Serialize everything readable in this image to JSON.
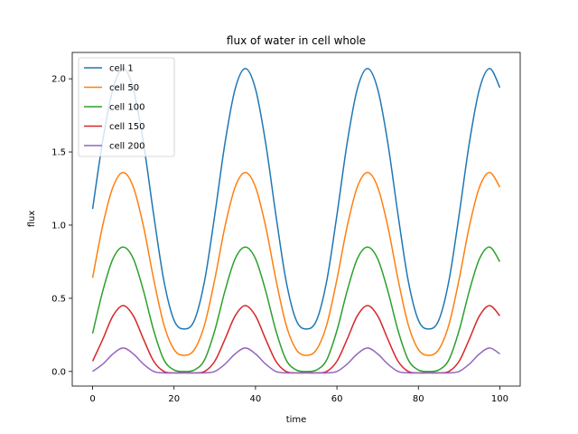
{
  "chart_data": {
    "type": "line",
    "title": "flux of water in cell whole",
    "xlabel": "time",
    "ylabel": "flux",
    "xlim": [
      -5,
      105
    ],
    "ylim": [
      -0.1,
      2.18
    ],
    "xticks": [
      0,
      20,
      40,
      60,
      80,
      100
    ],
    "yticks": [
      0.0,
      0.5,
      1.0,
      1.5,
      2.0
    ],
    "xtick_labels": [
      "0",
      "20",
      "40",
      "60",
      "80",
      "100"
    ],
    "ytick_labels": [
      "0.0",
      "0.5",
      "1.0",
      "1.5",
      "2.0"
    ],
    "grid": false,
    "legend": "top-left",
    "x": [
      0,
      2.5,
      5,
      7.5,
      10,
      12.5,
      15,
      17.5,
      20,
      22.5,
      25,
      27.5,
      30,
      32.5,
      35,
      37.5,
      40,
      42.5,
      45,
      47.5,
      50,
      52.5,
      55,
      57.5,
      60,
      62.5,
      65,
      67.5,
      70,
      72.5,
      75,
      77.5,
      80,
      82.5,
      85,
      87.5,
      90,
      92.5,
      95,
      97.5,
      100
    ],
    "series": [
      {
        "name": "cell 1",
        "color": "#1f77b4",
        "values": [
          1.11,
          1.58,
          1.93,
          2.07,
          1.93,
          1.56,
          1.07,
          0.62,
          0.35,
          0.29,
          0.35,
          0.62,
          1.07,
          1.56,
          1.93,
          2.07,
          1.93,
          1.56,
          1.07,
          0.62,
          0.35,
          0.29,
          0.35,
          0.62,
          1.07,
          1.56,
          1.93,
          2.07,
          1.93,
          1.56,
          1.07,
          0.62,
          0.35,
          0.29,
          0.35,
          0.62,
          1.07,
          1.56,
          1.93,
          2.07,
          1.94
        ]
      },
      {
        "name": "cell 50",
        "color": "#ff7f0e",
        "values": [
          0.64,
          1.0,
          1.26,
          1.36,
          1.26,
          0.99,
          0.63,
          0.32,
          0.15,
          0.11,
          0.15,
          0.32,
          0.63,
          0.99,
          1.26,
          1.36,
          1.26,
          0.99,
          0.63,
          0.32,
          0.15,
          0.11,
          0.15,
          0.32,
          0.63,
          0.99,
          1.26,
          1.36,
          1.26,
          0.99,
          0.63,
          0.32,
          0.15,
          0.11,
          0.15,
          0.32,
          0.63,
          0.99,
          1.26,
          1.36,
          1.26
        ]
      },
      {
        "name": "cell 100",
        "color": "#2ca02c",
        "values": [
          0.26,
          0.55,
          0.77,
          0.85,
          0.77,
          0.55,
          0.28,
          0.08,
          0.01,
          0.0,
          0.01,
          0.08,
          0.28,
          0.55,
          0.77,
          0.85,
          0.77,
          0.55,
          0.28,
          0.08,
          0.01,
          0.0,
          0.01,
          0.08,
          0.28,
          0.55,
          0.77,
          0.85,
          0.77,
          0.55,
          0.28,
          0.08,
          0.01,
          0.0,
          0.01,
          0.08,
          0.28,
          0.55,
          0.77,
          0.85,
          0.75
        ]
      },
      {
        "name": "cell 150",
        "color": "#d62728",
        "values": [
          0.07,
          0.22,
          0.38,
          0.45,
          0.38,
          0.22,
          0.07,
          0.0,
          -0.01,
          -0.01,
          -0.01,
          0.0,
          0.07,
          0.22,
          0.38,
          0.45,
          0.38,
          0.22,
          0.07,
          0.0,
          -0.01,
          -0.01,
          -0.01,
          0.0,
          0.07,
          0.22,
          0.38,
          0.45,
          0.38,
          0.22,
          0.07,
          0.0,
          -0.01,
          -0.01,
          -0.01,
          0.0,
          0.07,
          0.22,
          0.38,
          0.45,
          0.38
        ]
      },
      {
        "name": "cell 200",
        "color": "#9467bd",
        "values": [
          0.0,
          0.05,
          0.12,
          0.16,
          0.12,
          0.05,
          0.0,
          -0.01,
          -0.01,
          -0.01,
          -0.01,
          -0.01,
          0.0,
          0.05,
          0.12,
          0.16,
          0.12,
          0.05,
          0.0,
          -0.01,
          -0.01,
          -0.01,
          -0.01,
          -0.01,
          0.0,
          0.05,
          0.12,
          0.16,
          0.12,
          0.05,
          0.0,
          -0.01,
          -0.01,
          -0.01,
          -0.01,
          -0.01,
          0.0,
          0.05,
          0.12,
          0.16,
          0.12
        ]
      }
    ]
  }
}
